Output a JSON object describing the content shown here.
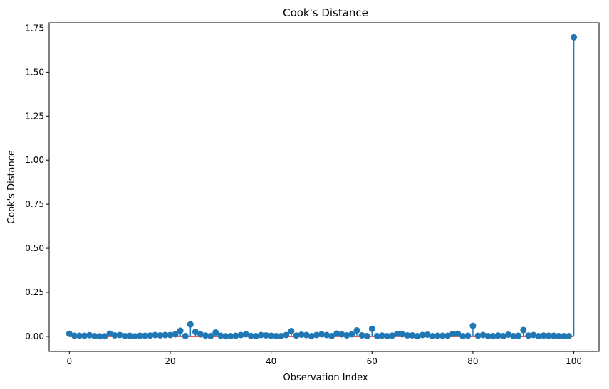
{
  "chart_data": {
    "type": "stem",
    "title": "Cook's Distance",
    "xlabel": "Observation Index",
    "ylabel": "Cook's Distance",
    "xlim": [
      -4,
      105
    ],
    "ylim": [
      -0.085,
      1.78
    ],
    "xticks": [
      0,
      20,
      40,
      60,
      80,
      100
    ],
    "yticks": [
      0.0,
      0.25,
      0.5,
      0.75,
      1.0,
      1.25,
      1.5,
      1.75
    ],
    "ytick_labels": [
      "0.00",
      "0.25",
      "0.50",
      "0.75",
      "1.00",
      "1.25",
      "1.50",
      "1.75"
    ],
    "grid": false,
    "colors": {
      "stem": "#1f77b4",
      "marker": "#1f77b4",
      "baseline": "#d62728"
    },
    "x": [
      0,
      1,
      2,
      3,
      4,
      5,
      6,
      7,
      8,
      9,
      10,
      11,
      12,
      13,
      14,
      15,
      16,
      17,
      18,
      19,
      20,
      21,
      22,
      23,
      24,
      25,
      26,
      27,
      28,
      29,
      30,
      31,
      32,
      33,
      34,
      35,
      36,
      37,
      38,
      39,
      40,
      41,
      42,
      43,
      44,
      45,
      46,
      47,
      48,
      49,
      50,
      51,
      52,
      53,
      54,
      55,
      56,
      57,
      58,
      59,
      60,
      61,
      62,
      63,
      64,
      65,
      66,
      67,
      68,
      69,
      70,
      71,
      72,
      73,
      74,
      75,
      76,
      77,
      78,
      79,
      80,
      81,
      82,
      83,
      84,
      85,
      86,
      87,
      88,
      89,
      90,
      91,
      92,
      93,
      94,
      95,
      96,
      97,
      98,
      99,
      100
    ],
    "values": [
      0.015,
      0.004,
      0.004,
      0.004,
      0.007,
      0.002,
      0.001,
      0.001,
      0.016,
      0.006,
      0.008,
      0.002,
      0.004,
      0.001,
      0.004,
      0.004,
      0.005,
      0.008,
      0.006,
      0.008,
      0.008,
      0.012,
      0.032,
      0.002,
      0.068,
      0.026,
      0.012,
      0.005,
      0.002,
      0.022,
      0.004,
      0.001,
      0.002,
      0.004,
      0.008,
      0.012,
      0.003,
      0.002,
      0.008,
      0.006,
      0.004,
      0.002,
      0.002,
      0.008,
      0.03,
      0.005,
      0.01,
      0.008,
      0.002,
      0.008,
      0.012,
      0.008,
      0.002,
      0.016,
      0.012,
      0.006,
      0.012,
      0.034,
      0.006,
      0.002,
      0.043,
      0.002,
      0.005,
      0.002,
      0.005,
      0.015,
      0.012,
      0.006,
      0.006,
      0.002,
      0.008,
      0.01,
      0.002,
      0.004,
      0.004,
      0.004,
      0.014,
      0.015,
      0.002,
      0.004,
      0.06,
      0.004,
      0.008,
      0.002,
      0.002,
      0.005,
      0.002,
      0.01,
      0.002,
      0.004,
      0.036,
      0.005,
      0.008,
      0.002,
      0.005,
      0.004,
      0.004,
      0.002,
      0.002,
      0.002,
      1.698
    ]
  }
}
